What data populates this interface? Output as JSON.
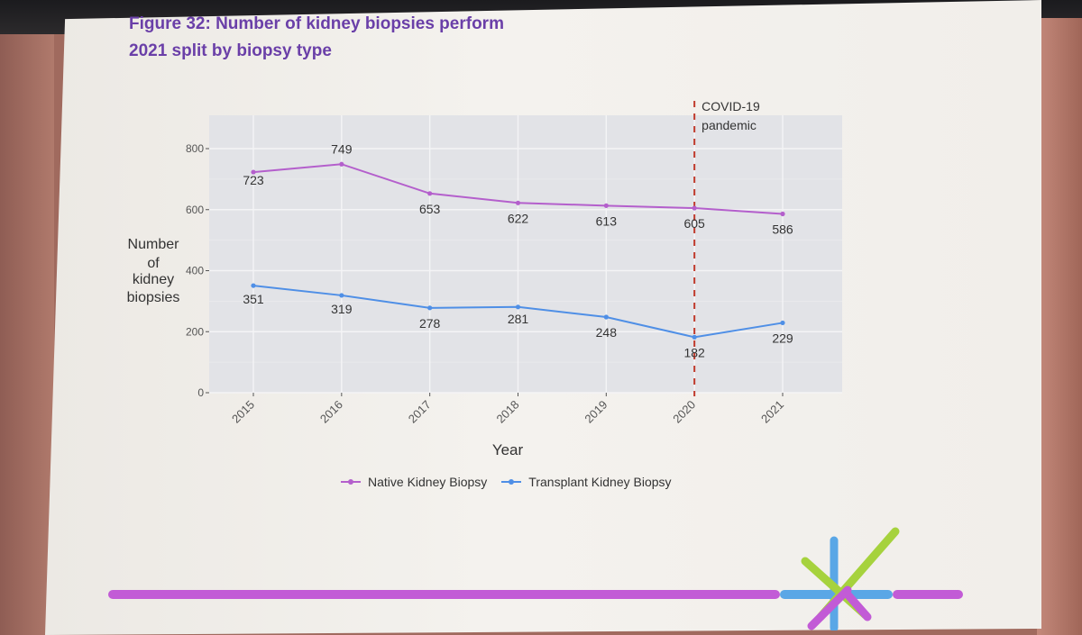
{
  "title_lines": [
    "Figure 32: Number of kidney biopsies perform",
    "2021 split by biopsy type"
  ],
  "chart_data": {
    "type": "line",
    "title": "Figure 32: Number of kidney biopsies perform 2021 split by biopsy type",
    "xlabel": "Year",
    "ylabel_lines": [
      "Number",
      "of",
      "kidney",
      "biopsies"
    ],
    "x": [
      "2015",
      "2016",
      "2017",
      "2018",
      "2019",
      "2020",
      "2021"
    ],
    "yticks": [
      "0",
      "200",
      "400",
      "600",
      "800"
    ],
    "ylim": [
      0,
      900
    ],
    "grid": true,
    "legend_position": "bottom",
    "series": [
      {
        "name": "Native Kidney Biopsy",
        "color": "#b45fcc",
        "values": [
          723,
          749,
          653,
          622,
          613,
          605,
          586
        ],
        "labels": [
          "723",
          "749",
          "653",
          "622",
          "613",
          "605",
          "586"
        ]
      },
      {
        "name": "Transplant Kidney Biopsy",
        "color": "#4f8fe6",
        "values": [
          351,
          319,
          278,
          281,
          248,
          182,
          229
        ],
        "labels": [
          "351",
          "319",
          "278",
          "281",
          "248",
          "182",
          "229"
        ]
      }
    ],
    "annotation": {
      "x": "2020",
      "lines": [
        "COVID-19",
        "pandemic"
      ],
      "color": "#c0392b"
    }
  },
  "colors": {
    "title": "#6a3fa8",
    "panel": "#e2e3e7",
    "bar_purple": "#c25bd6",
    "bar_blue": "#5aa7e6",
    "logo_green": "#a6d23d"
  }
}
